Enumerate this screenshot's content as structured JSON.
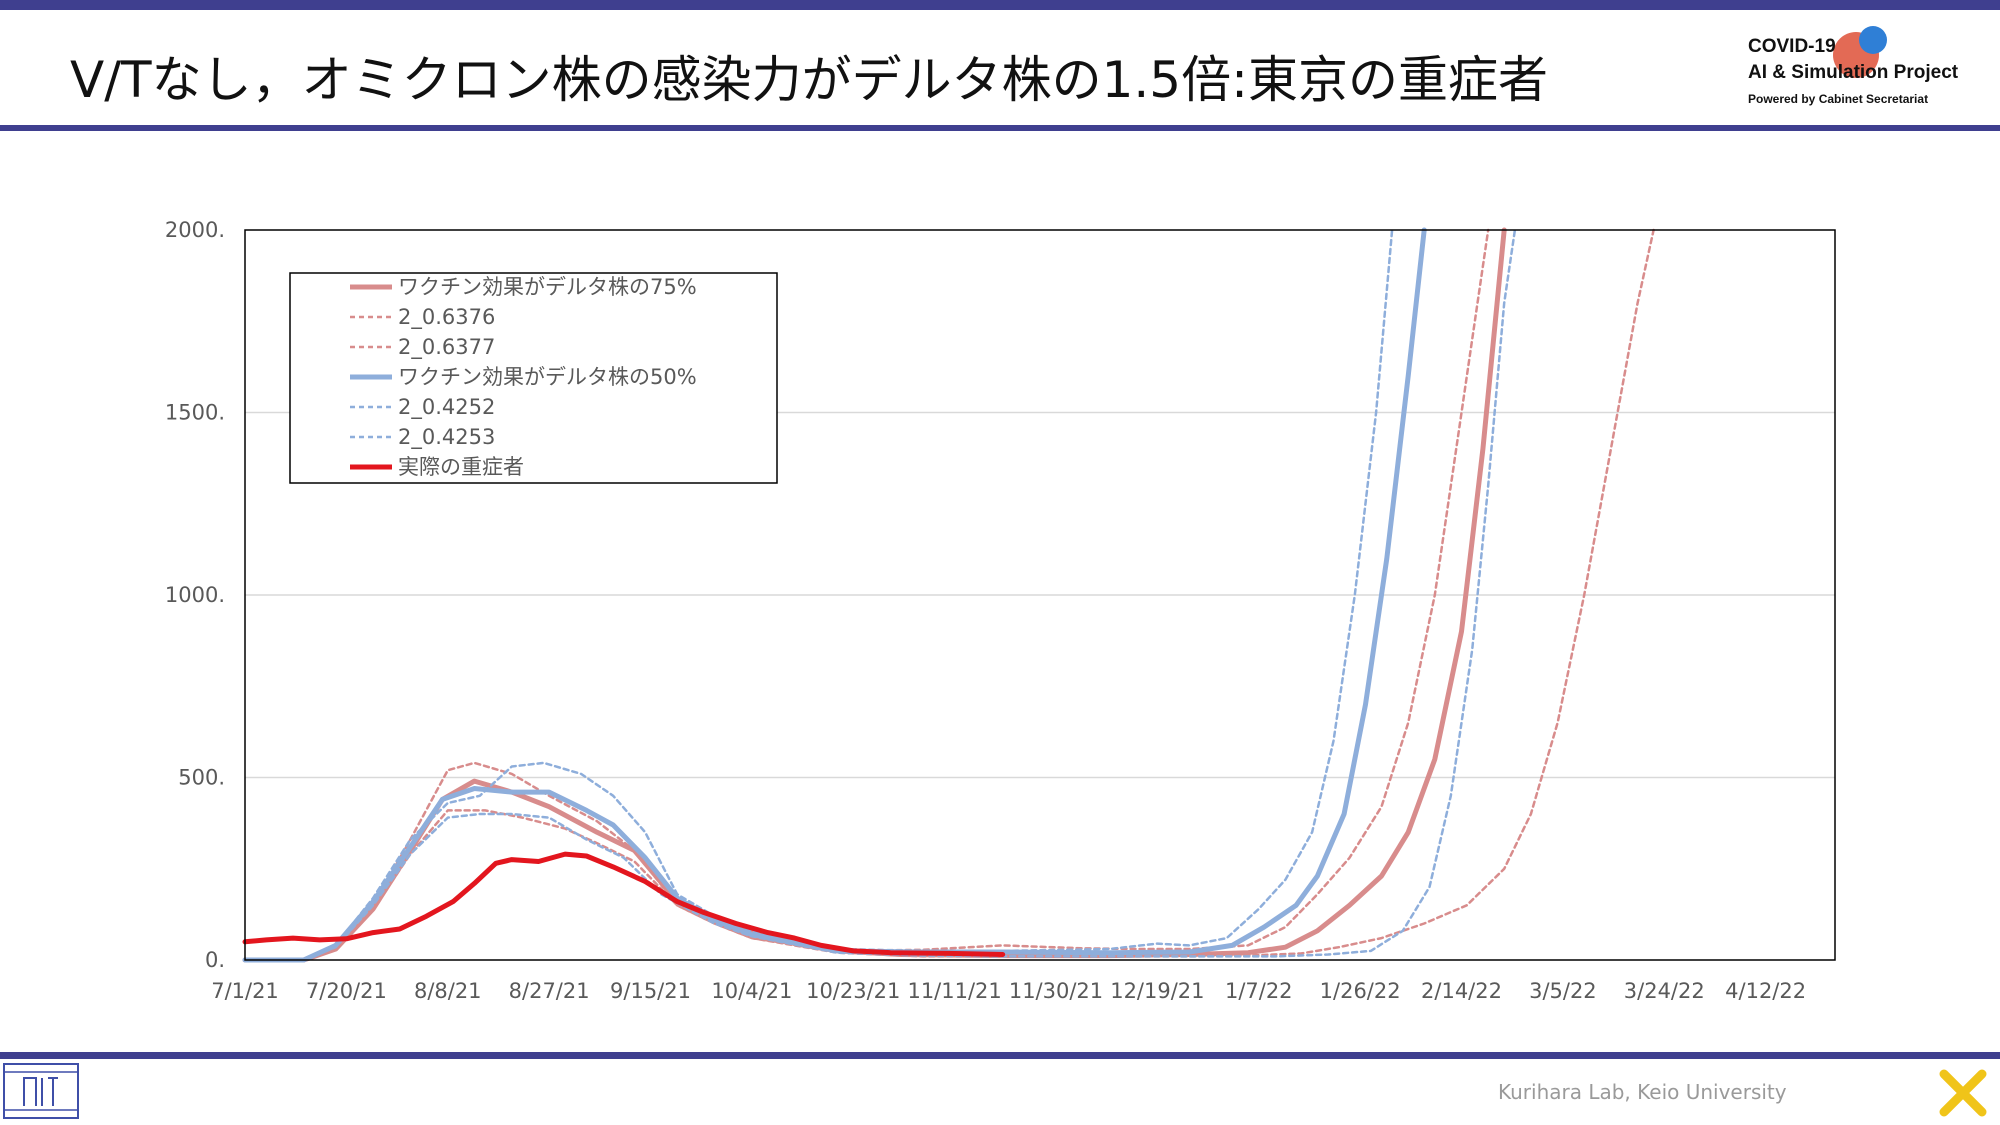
{
  "slide": {
    "title": "V/Tなし，オミクロン株の感染力がデルタ株の1.5倍:東京の重症者",
    "project_line1": "COVID-19",
    "project_line2": "AI & Simulation Project",
    "project_line3": "Powered by Cabinet Secretariat",
    "lab": "Kurihara Lab, Keio University"
  },
  "colors": {
    "bar": "#3f3f8f",
    "red_pale": "#d88c8c",
    "blue_pale": "#8eaedb",
    "actual": "#e3161e",
    "grid": "#d9d9d9"
  },
  "chart_data": {
    "type": "line",
    "title": "",
    "xlabel": "",
    "ylabel": "",
    "x_range": [
      "7/1/21",
      "4/25/22"
    ],
    "ylim": [
      0,
      2000
    ],
    "y_ticks": [
      "0.",
      "500.",
      "1000.",
      "1500.",
      "2000."
    ],
    "x_ticks": [
      "7/1/21",
      "7/20/21",
      "8/8/21",
      "8/27/21",
      "9/15/21",
      "10/4/21",
      "10/23/21",
      "11/11/21",
      "11/30/21",
      "12/19/21",
      "1/7/22",
      "1/26/22",
      "2/14/22",
      "3/5/22",
      "3/24/22",
      "4/12/22"
    ],
    "grid": true,
    "legend_position": "top-left",
    "series": [
      {
        "name": "ワクチン効果がデルタ株の75%",
        "color": "#d88c8c",
        "dash": "solid",
        "width": 5,
        "points": [
          [
            "7/1/21",
            0
          ],
          [
            "7/12/21",
            0
          ],
          [
            "7/18/21",
            30
          ],
          [
            "7/25/21",
            140
          ],
          [
            "8/1/21",
            300
          ],
          [
            "8/7/21",
            440
          ],
          [
            "8/13/21",
            490
          ],
          [
            "8/20/21",
            460
          ],
          [
            "8/27/21",
            420
          ],
          [
            "9/5/21",
            350
          ],
          [
            "9/12/21",
            300
          ],
          [
            "9/20/21",
            160
          ],
          [
            "9/27/21",
            110
          ],
          [
            "10/4/21",
            75
          ],
          [
            "10/12/21",
            45
          ],
          [
            "10/20/21",
            25
          ],
          [
            "11/1/21",
            15
          ],
          [
            "11/20/21",
            12
          ],
          [
            "12/10/21",
            12
          ],
          [
            "12/25/21",
            15
          ],
          [
            "1/5/22",
            20
          ],
          [
            "1/12/22",
            35
          ],
          [
            "1/18/22",
            80
          ],
          [
            "1/24/22",
            150
          ],
          [
            "1/30/22",
            230
          ],
          [
            "2/4/22",
            350
          ],
          [
            "2/9/22",
            550
          ],
          [
            "2/14/22",
            900
          ],
          [
            "2/18/22",
            1400
          ],
          [
            "2/22/22",
            2000
          ]
        ]
      },
      {
        "name": "2_0.6376",
        "color": "#d88c8c",
        "dash": "dashed",
        "width": 2.5,
        "points": [
          [
            "7/1/21",
            0
          ],
          [
            "7/12/21",
            0
          ],
          [
            "7/18/21",
            30
          ],
          [
            "7/25/21",
            150
          ],
          [
            "8/1/21",
            330
          ],
          [
            "8/8/21",
            520
          ],
          [
            "8/13/21",
            540
          ],
          [
            "8/20/21",
            510
          ],
          [
            "8/27/21",
            450
          ],
          [
            "9/5/21",
            380
          ],
          [
            "9/12/21",
            300
          ],
          [
            "9/20/21",
            150
          ],
          [
            "9/27/21",
            100
          ],
          [
            "10/4/21",
            60
          ],
          [
            "10/20/21",
            20
          ],
          [
            "11/5/21",
            10
          ],
          [
            "11/20/21",
            10
          ],
          [
            "12/10/21",
            10
          ],
          [
            "12/25/21",
            10
          ],
          [
            "1/5/22",
            12
          ],
          [
            "1/15/22",
            18
          ],
          [
            "1/22/22",
            35
          ],
          [
            "1/30/22",
            60
          ],
          [
            "2/7/22",
            100
          ],
          [
            "2/15/22",
            150
          ],
          [
            "2/22/22",
            250
          ],
          [
            "2/27/22",
            400
          ],
          [
            "3/4/22",
            650
          ],
          [
            "3/9/22",
            1000
          ],
          [
            "3/14/22",
            1400
          ],
          [
            "3/19/22",
            1800
          ],
          [
            "3/22/22",
            2000
          ]
        ]
      },
      {
        "name": "2_0.6377",
        "color": "#d88c8c",
        "dash": "dashed",
        "width": 2.5,
        "points": [
          [
            "7/1/21",
            0
          ],
          [
            "7/12/21",
            0
          ],
          [
            "7/18/21",
            30
          ],
          [
            "7/25/21",
            140
          ],
          [
            "8/1/21",
            290
          ],
          [
            "8/8/21",
            410
          ],
          [
            "8/15/21",
            410
          ],
          [
            "8/22/21",
            390
          ],
          [
            "8/30/21",
            360
          ],
          [
            "9/5/21",
            320
          ],
          [
            "9/12/21",
            270
          ],
          [
            "9/20/21",
            150
          ],
          [
            "9/27/21",
            100
          ],
          [
            "10/4/21",
            60
          ],
          [
            "10/20/21",
            25
          ],
          [
            "11/5/21",
            28
          ],
          [
            "11/20/21",
            40
          ],
          [
            "12/5/21",
            32
          ],
          [
            "12/15/21",
            30
          ],
          [
            "12/25/21",
            30
          ],
          [
            "1/5/22",
            40
          ],
          [
            "1/12/22",
            90
          ],
          [
            "1/18/22",
            180
          ],
          [
            "1/24/22",
            280
          ],
          [
            "1/30/22",
            420
          ],
          [
            "2/4/22",
            650
          ],
          [
            "2/9/22",
            1000
          ],
          [
            "2/13/22",
            1400
          ],
          [
            "2/17/22",
            1800
          ],
          [
            "2/19/22",
            2000
          ]
        ]
      },
      {
        "name": "ワクチン効果がデルタ株の50%",
        "color": "#8eaedb",
        "dash": "solid",
        "width": 5,
        "points": [
          [
            "7/1/21",
            0
          ],
          [
            "7/12/21",
            0
          ],
          [
            "7/18/21",
            40
          ],
          [
            "7/25/21",
            160
          ],
          [
            "8/1/21",
            310
          ],
          [
            "8/7/21",
            440
          ],
          [
            "8/13/21",
            470
          ],
          [
            "8/20/21",
            460
          ],
          [
            "8/27/21",
            460
          ],
          [
            "9/3/21",
            410
          ],
          [
            "9/8/21",
            370
          ],
          [
            "9/14/21",
            280
          ],
          [
            "9/20/21",
            170
          ],
          [
            "9/27/21",
            110
          ],
          [
            "10/4/21",
            70
          ],
          [
            "10/20/21",
            25
          ],
          [
            "11/5/21",
            22
          ],
          [
            "11/20/21",
            22
          ],
          [
            "12/10/21",
            20
          ],
          [
            "12/25/21",
            22
          ],
          [
            "1/2/22",
            40
          ],
          [
            "1/8/22",
            90
          ],
          [
            "1/14/22",
            150
          ],
          [
            "1/18/22",
            230
          ],
          [
            "1/23/22",
            400
          ],
          [
            "1/27/22",
            700
          ],
          [
            "1/31/22",
            1100
          ],
          [
            "2/4/22",
            1600
          ],
          [
            "2/7/22",
            2000
          ]
        ]
      },
      {
        "name": "2_0.4252",
        "color": "#8eaedb",
        "dash": "dashed",
        "width": 2.5,
        "points": [
          [
            "7/1/21",
            0
          ],
          [
            "7/12/21",
            0
          ],
          [
            "7/18/21",
            40
          ],
          [
            "7/25/21",
            170
          ],
          [
            "8/1/21",
            330
          ],
          [
            "8/8/21",
            430
          ],
          [
            "8/14/21",
            450
          ],
          [
            "8/20/21",
            530
          ],
          [
            "8/26/21",
            540
          ],
          [
            "9/2/21",
            510
          ],
          [
            "9/8/21",
            450
          ],
          [
            "9/14/21",
            350
          ],
          [
            "9/20/21",
            180
          ],
          [
            "9/27/21",
            120
          ],
          [
            "10/4/21",
            80
          ],
          [
            "10/20/21",
            30
          ],
          [
            "11/5/21",
            25
          ],
          [
            "11/20/21",
            25
          ],
          [
            "12/10/21",
            30
          ],
          [
            "12/19/21",
            45
          ],
          [
            "12/25/21",
            40
          ],
          [
            "1/1/22",
            60
          ],
          [
            "1/7/22",
            140
          ],
          [
            "1/12/22",
            220
          ],
          [
            "1/17/22",
            350
          ],
          [
            "1/21/22",
            600
          ],
          [
            "1/25/22",
            1000
          ],
          [
            "1/29/22",
            1500
          ],
          [
            "2/1/22",
            2000
          ]
        ]
      },
      {
        "name": "2_0.4253",
        "color": "#8eaedb",
        "dash": "dashed",
        "width": 2.5,
        "points": [
          [
            "7/1/21",
            0
          ],
          [
            "7/12/21",
            0
          ],
          [
            "7/18/21",
            35
          ],
          [
            "7/25/21",
            150
          ],
          [
            "8/1/21",
            290
          ],
          [
            "8/8/21",
            390
          ],
          [
            "8/14/21",
            400
          ],
          [
            "8/20/21",
            400
          ],
          [
            "8/27/21",
            390
          ],
          [
            "9/3/21",
            330
          ],
          [
            "9/10/21",
            280
          ],
          [
            "9/17/21",
            180
          ],
          [
            "9/27/21",
            100
          ],
          [
            "10/4/21",
            65
          ],
          [
            "10/20/21",
            20
          ],
          [
            "11/5/21",
            12
          ],
          [
            "11/20/21",
            10
          ],
          [
            "12/10/21",
            10
          ],
          [
            "12/25/21",
            10
          ],
          [
            "1/10/22",
            10
          ],
          [
            "1/20/22",
            15
          ],
          [
            "1/28/22",
            25
          ],
          [
            "2/3/22",
            80
          ],
          [
            "2/8/22",
            200
          ],
          [
            "2/12/22",
            450
          ],
          [
            "2/16/22",
            850
          ],
          [
            "2/19/22",
            1300
          ],
          [
            "2/22/22",
            1800
          ],
          [
            "2/24/22",
            2000
          ]
        ]
      },
      {
        "name": "実際の重症者",
        "color": "#e3161e",
        "dash": "solid",
        "width": 5,
        "points": [
          [
            "7/1/21",
            50
          ],
          [
            "7/5/21",
            55
          ],
          [
            "7/10/21",
            60
          ],
          [
            "7/15/21",
            55
          ],
          [
            "7/20/21",
            58
          ],
          [
            "7/25/21",
            75
          ],
          [
            "7/30/21",
            85
          ],
          [
            "8/4/21",
            120
          ],
          [
            "8/9/21",
            160
          ],
          [
            "8/13/21",
            210
          ],
          [
            "8/17/21",
            265
          ],
          [
            "8/20/21",
            275
          ],
          [
            "8/25/21",
            270
          ],
          [
            "8/30/21",
            290
          ],
          [
            "9/3/21",
            285
          ],
          [
            "9/8/21",
            255
          ],
          [
            "9/14/21",
            215
          ],
          [
            "9/20/21",
            160
          ],
          [
            "9/25/21",
            130
          ],
          [
            "10/1/21",
            100
          ],
          [
            "10/7/21",
            75
          ],
          [
            "10/12/21",
            60
          ],
          [
            "10/17/21",
            40
          ],
          [
            "10/23/21",
            25
          ],
          [
            "10/30/21",
            20
          ],
          [
            "11/10/21",
            18
          ],
          [
            "11/20/21",
            15
          ]
        ]
      }
    ]
  }
}
